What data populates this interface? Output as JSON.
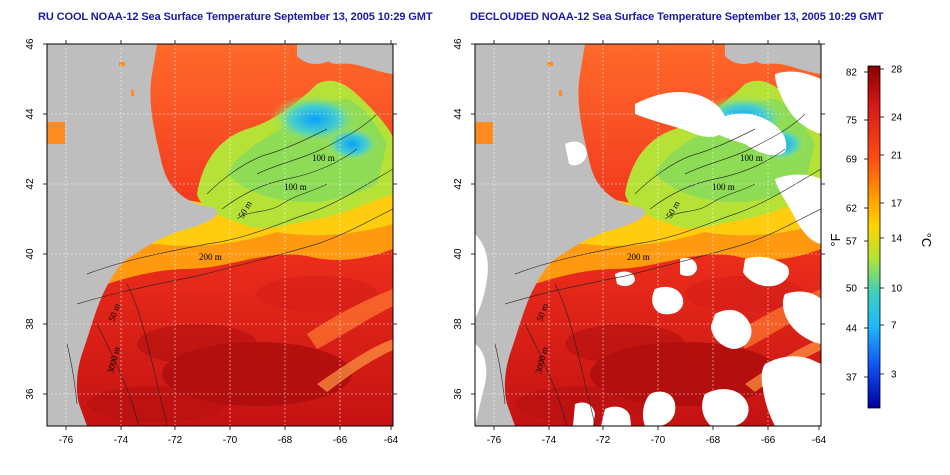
{
  "panels": [
    {
      "title": "RU COOL NOAA-12 Sea Surface Temperature September 13, 2005 10:29 GMT",
      "contour_labels": [
        "100 m",
        "100 m",
        "50 m",
        "200 m",
        "50 m",
        "3000 m"
      ],
      "clouds_masked": false
    },
    {
      "title": "DECLOUDED NOAA-12 Sea Surface Temperature September 13, 2005 10:29 GMT",
      "contour_labels": [
        "100 m",
        "100 m",
        "50 m",
        "200 m",
        "50 m",
        "3000 m"
      ],
      "clouds_masked": true
    }
  ],
  "axes": {
    "lat_ticks": [
      "46",
      "44",
      "42",
      "40",
      "38",
      "36"
    ],
    "lon_ticks": [
      "-76",
      "-74",
      "-72",
      "-70",
      "-68",
      "-66",
      "-64"
    ]
  },
  "colorbar": {
    "fahrenheit_ticks": [
      "82",
      "75",
      "69",
      "62",
      "57",
      "50",
      "44",
      "37"
    ],
    "celsius_ticks": [
      "28",
      "24",
      "21",
      "17",
      "14",
      "10",
      "7",
      "3"
    ],
    "fahrenheit_label": "°F",
    "celsius_label": "°C",
    "colors": [
      "#8b0000",
      "#dd1c1c",
      "#ff8c00",
      "#ffd400",
      "#a8e23c",
      "#3fd0c0",
      "#1e90ff",
      "#0000aa"
    ]
  },
  "colors": {
    "land": "#bebebe",
    "cloud_mask": "#ffffff",
    "title": "#1a1aa6"
  }
}
